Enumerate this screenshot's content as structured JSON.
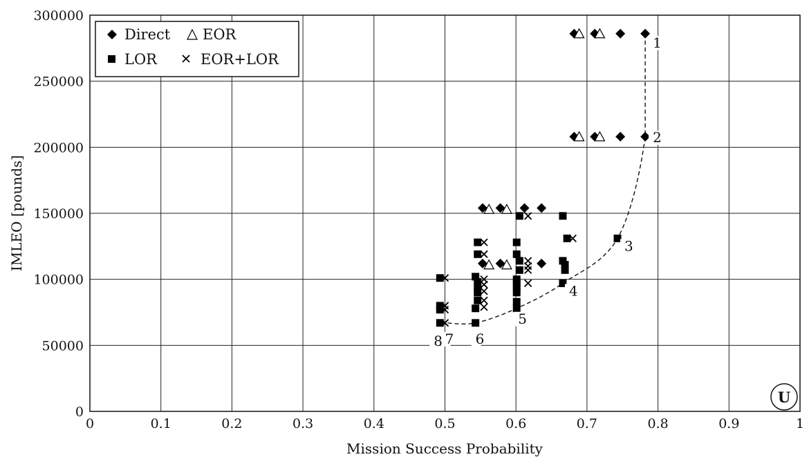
{
  "chart_data": {
    "type": "scatter",
    "xlabel": "Mission Success Probability",
    "ylabel": "IMLEO [pounds]",
    "xlim": [
      0,
      1
    ],
    "ylim": [
      0,
      300000
    ],
    "x_ticks": [
      "0",
      "0.1",
      "0.2",
      "0.3",
      "0.4",
      "0.5",
      "0.6",
      "0.7",
      "0.8",
      "0.9",
      "1"
    ],
    "y_ticks": [
      "0",
      "50000",
      "100000",
      "150000",
      "200000",
      "250000",
      "300000"
    ],
    "grid": true,
    "legend_position": "top-left",
    "corner_badge": "U",
    "series": [
      {
        "name": "Direct",
        "marker": "diamond",
        "points": [
          [
            0.682,
            286000
          ],
          [
            0.711,
            286000
          ],
          [
            0.747,
            286000
          ],
          [
            0.782,
            286000
          ],
          [
            0.682,
            208000
          ],
          [
            0.711,
            208000
          ],
          [
            0.747,
            208000
          ],
          [
            0.782,
            208000
          ],
          [
            0.553,
            154000
          ],
          [
            0.578,
            154000
          ],
          [
            0.612,
            154000
          ],
          [
            0.636,
            154000
          ],
          [
            0.553,
            112000
          ],
          [
            0.578,
            112000
          ],
          [
            0.636,
            112000
          ]
        ]
      },
      {
        "name": "EOR",
        "marker": "triangle",
        "points": [
          [
            0.689,
            286000
          ],
          [
            0.718,
            286000
          ],
          [
            0.689,
            208000
          ],
          [
            0.718,
            208000
          ],
          [
            0.562,
            153000
          ],
          [
            0.587,
            153000
          ],
          [
            0.562,
            111000
          ],
          [
            0.587,
            111000
          ]
        ]
      },
      {
        "name": "LOR",
        "marker": "square",
        "points": [
          [
            0.493,
            101000
          ],
          [
            0.493,
            80000
          ],
          [
            0.493,
            77000
          ],
          [
            0.493,
            67000
          ],
          [
            0.543,
            102000
          ],
          [
            0.543,
            67000
          ],
          [
            0.543,
            78000
          ],
          [
            0.546,
            128000
          ],
          [
            0.546,
            119000
          ],
          [
            0.546,
            98000
          ],
          [
            0.546,
            94000
          ],
          [
            0.546,
            90000
          ],
          [
            0.546,
            84000
          ],
          [
            0.601,
            128000
          ],
          [
            0.601,
            119000
          ],
          [
            0.601,
            100000
          ],
          [
            0.601,
            97000
          ],
          [
            0.601,
            94000
          ],
          [
            0.601,
            90000
          ],
          [
            0.601,
            83000
          ],
          [
            0.601,
            78000
          ],
          [
            0.605,
            148000
          ],
          [
            0.605,
            114000
          ],
          [
            0.605,
            107000
          ],
          [
            0.666,
            148000
          ],
          [
            0.666,
            114000
          ],
          [
            0.666,
            97000
          ],
          [
            0.669,
            111000
          ],
          [
            0.669,
            107000
          ],
          [
            0.672,
            131000
          ],
          [
            0.743,
            131000
          ]
        ]
      },
      {
        "name": "EOR+LOR",
        "marker": "x",
        "points": [
          [
            0.5,
            101000
          ],
          [
            0.5,
            80000
          ],
          [
            0.5,
            77000
          ],
          [
            0.5,
            67000
          ],
          [
            0.555,
            128000
          ],
          [
            0.555,
            119000
          ],
          [
            0.555,
            100000
          ],
          [
            0.555,
            96000
          ],
          [
            0.555,
            91000
          ],
          [
            0.555,
            84000
          ],
          [
            0.555,
            79000
          ],
          [
            0.617,
            148000
          ],
          [
            0.617,
            114000
          ],
          [
            0.617,
            110000
          ],
          [
            0.617,
            107000
          ],
          [
            0.617,
            97000
          ],
          [
            0.68,
            131000
          ]
        ]
      }
    ],
    "pareto_front": {
      "style": "dashed",
      "points": [
        [
          0.782,
          286000
        ],
        [
          0.782,
          208000
        ],
        [
          0.743,
          131000
        ],
        [
          0.666,
          97000
        ],
        [
          0.601,
          78000
        ],
        [
          0.543,
          67000
        ],
        [
          0.5,
          67000
        ],
        [
          0.493,
          67000
        ]
      ],
      "labels": [
        {
          "text": "1",
          "x": 0.782,
          "y": 286000
        },
        {
          "text": "2",
          "x": 0.782,
          "y": 208000
        },
        {
          "text": "3",
          "x": 0.743,
          "y": 131000
        },
        {
          "text": "4",
          "x": 0.666,
          "y": 97000
        },
        {
          "text": "5",
          "x": 0.601,
          "y": 78000
        },
        {
          "text": "6",
          "x": 0.543,
          "y": 67000
        },
        {
          "text": "7",
          "x": 0.5,
          "y": 67000
        },
        {
          "text": "8",
          "x": 0.493,
          "y": 67000
        }
      ]
    }
  }
}
